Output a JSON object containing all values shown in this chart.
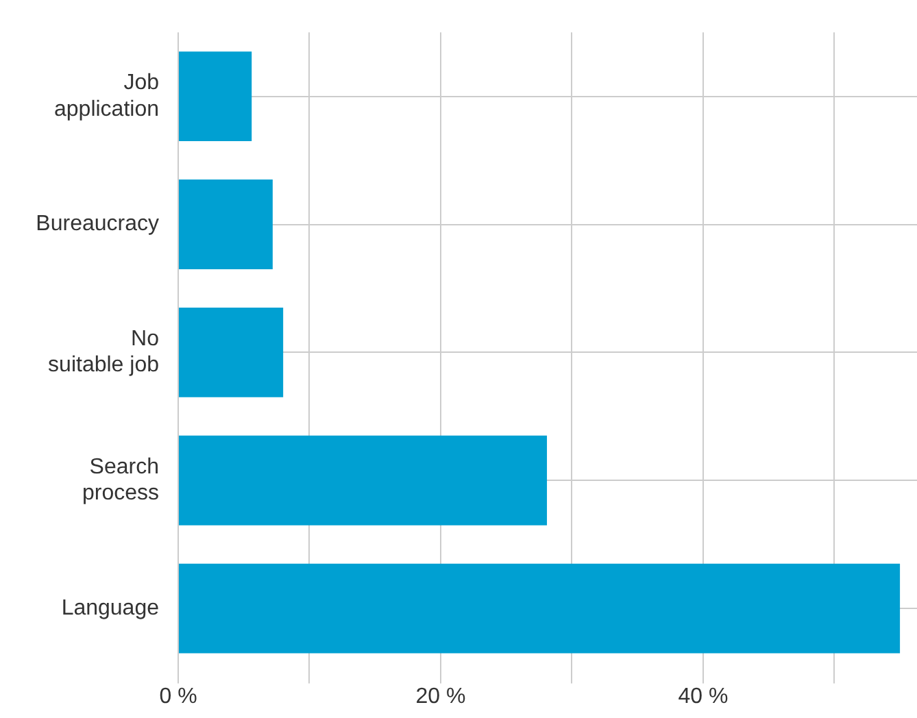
{
  "chart_data": {
    "type": "bar",
    "orientation": "horizontal",
    "categories": [
      "Job application",
      "Bureaucracy",
      "No suitable job",
      "Search process",
      "Language"
    ],
    "values": [
      5.6,
      7.2,
      8.0,
      28.1,
      55.0
    ],
    "color": "#00a0d2",
    "xlim": [
      0,
      56.3
    ],
    "xticks": [
      {
        "value": 0,
        "label": "0 %"
      },
      {
        "value": 10,
        "label": null
      },
      {
        "value": 20,
        "label": "20 %"
      },
      {
        "value": 30,
        "label": null
      },
      {
        "value": 40,
        "label": "40 %"
      },
      {
        "value": 50,
        "label": null
      }
    ],
    "grid": true,
    "legend": false
  }
}
